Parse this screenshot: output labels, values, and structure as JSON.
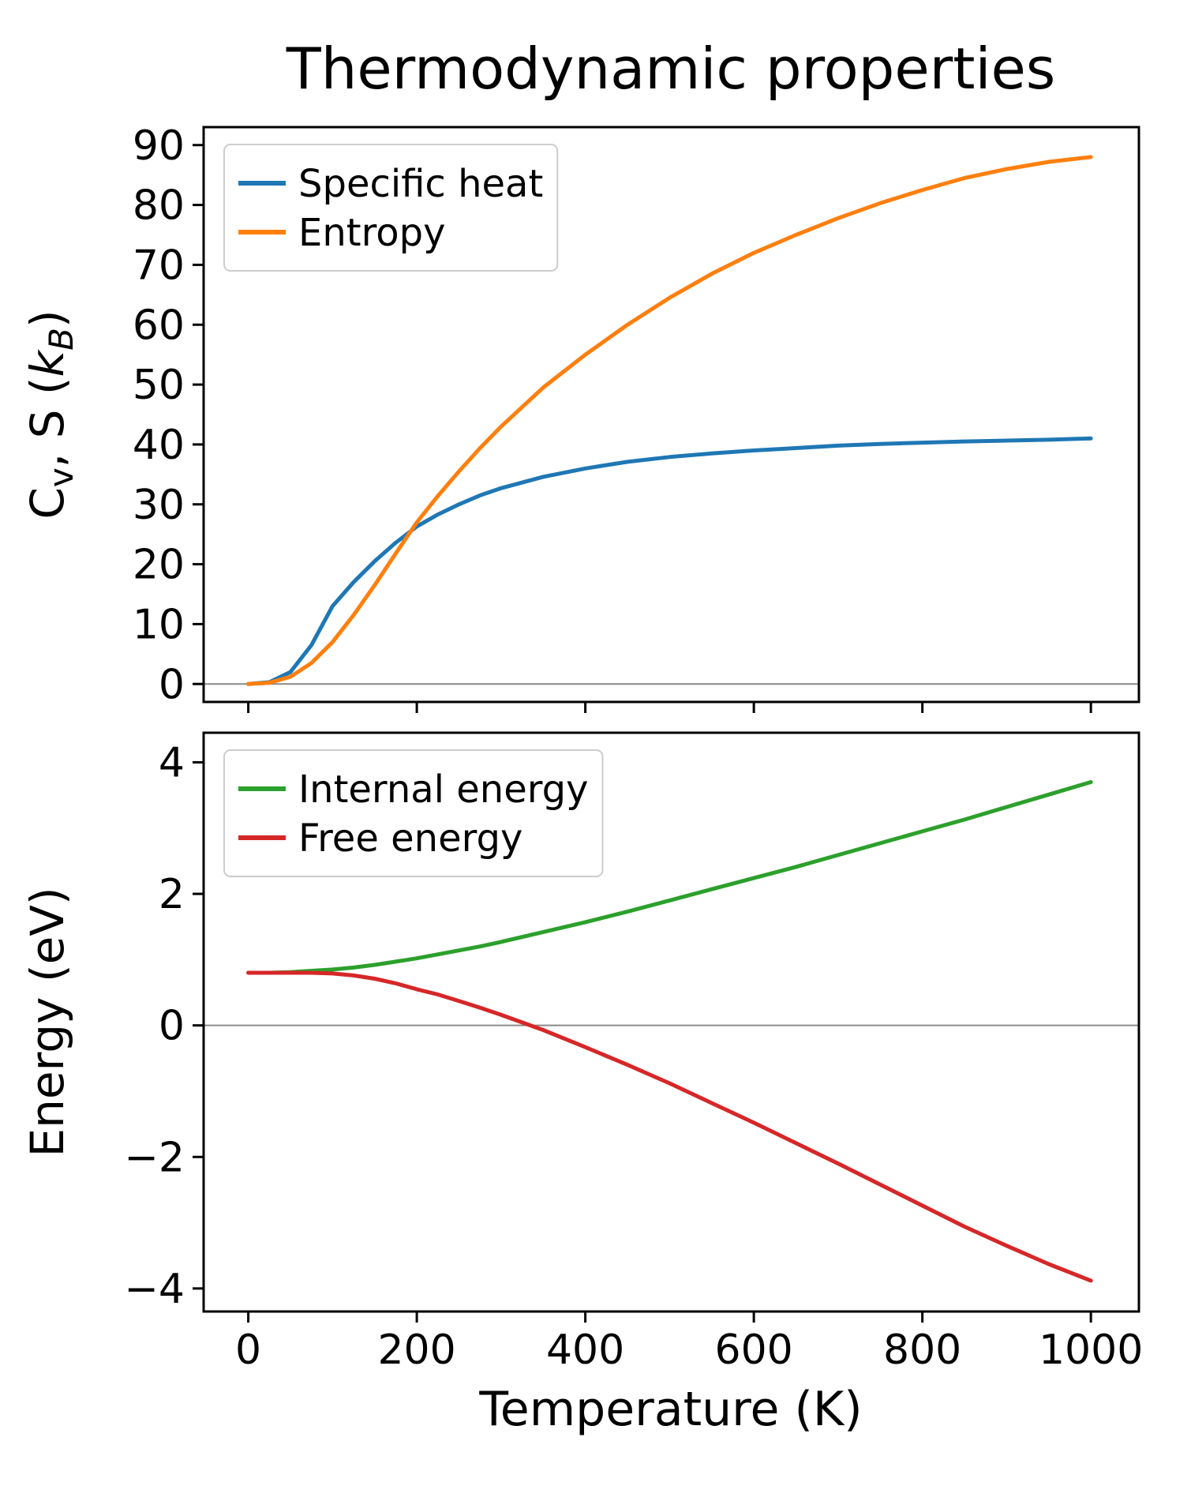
{
  "chart_data": [
    {
      "type": "line",
      "title": "Thermodynamic properties",
      "xlabel": "",
      "ylabel": "Cv, S (kB)",
      "ylabel_segments": [
        {
          "t": "C"
        },
        {
          "t": "v",
          "sub": true
        },
        {
          "t": ", S ("
        },
        {
          "t": "k",
          "italic": true
        },
        {
          "t": "B",
          "sub": true,
          "italic": true
        },
        {
          "t": ")"
        }
      ],
      "xlim": [
        -53,
        1057
      ],
      "ylim": [
        -3,
        93
      ],
      "xticks": [
        0,
        200,
        400,
        600,
        800,
        1000
      ],
      "yticks": [
        0,
        10,
        20,
        30,
        40,
        50,
        60,
        70,
        80,
        90
      ],
      "show_xticklabels": false,
      "zero_line": true,
      "zero_line_color": "#8a8a8a",
      "grid": false,
      "legend_position": "upper left",
      "x": [
        0,
        25,
        50,
        75,
        100,
        125,
        150,
        175,
        200,
        225,
        250,
        275,
        300,
        350,
        400,
        450,
        500,
        550,
        600,
        650,
        700,
        750,
        800,
        850,
        900,
        950,
        1000
      ],
      "series": [
        {
          "name": "Specific heat",
          "color": "#1f77b4",
          "values": [
            0,
            0.3,
            2.0,
            6.5,
            13.0,
            17.0,
            20.5,
            23.6,
            26.3,
            28.3,
            30.0,
            31.5,
            32.7,
            34.6,
            36.0,
            37.1,
            37.9,
            38.5,
            39.0,
            39.4,
            39.8,
            40.1,
            40.3,
            40.5,
            40.65,
            40.8,
            41.0
          ]
        },
        {
          "name": "Entropy",
          "color": "#ff7f0e",
          "values": [
            0,
            0.2,
            1.2,
            3.5,
            7.0,
            11.5,
            16.5,
            21.8,
            27.0,
            31.4,
            35.5,
            39.4,
            43.0,
            49.5,
            55.0,
            60.0,
            64.5,
            68.5,
            72.0,
            75.0,
            77.8,
            80.3,
            82.5,
            84.5,
            86.0,
            87.2,
            88.0
          ]
        }
      ]
    },
    {
      "type": "line",
      "title": "",
      "xlabel": "Temperature (K)",
      "ylabel": "Energy (eV)",
      "ylabel_segments": [
        {
          "t": "Energy (eV)"
        }
      ],
      "xlim": [
        -53,
        1057
      ],
      "ylim": [
        -4.35,
        4.45
      ],
      "xticks": [
        0,
        200,
        400,
        600,
        800,
        1000
      ],
      "yticks": [
        -4,
        -2,
        0,
        2,
        4
      ],
      "show_xticklabels": true,
      "zero_line": true,
      "zero_line_color": "#8a8a8a",
      "grid": false,
      "legend_position": "upper left",
      "x": [
        0,
        25,
        50,
        75,
        100,
        125,
        150,
        175,
        200,
        225,
        250,
        275,
        300,
        350,
        400,
        450,
        500,
        550,
        600,
        650,
        700,
        750,
        800,
        850,
        900,
        950,
        1000
      ],
      "series": [
        {
          "name": "Internal energy",
          "color": "#2ca02c",
          "values": [
            0.8,
            0.8,
            0.81,
            0.83,
            0.85,
            0.88,
            0.92,
            0.97,
            1.02,
            1.08,
            1.14,
            1.2,
            1.27,
            1.42,
            1.57,
            1.73,
            1.9,
            2.07,
            2.24,
            2.41,
            2.59,
            2.77,
            2.95,
            3.13,
            3.32,
            3.51,
            3.7
          ]
        },
        {
          "name": "Free energy",
          "color": "#d62728",
          "values": [
            0.8,
            0.8,
            0.8,
            0.8,
            0.79,
            0.76,
            0.71,
            0.64,
            0.55,
            0.47,
            0.37,
            0.27,
            0.16,
            -0.07,
            -0.33,
            -0.6,
            -0.88,
            -1.18,
            -1.48,
            -1.79,
            -2.1,
            -2.42,
            -2.74,
            -3.06,
            -3.35,
            -3.63,
            -3.88
          ]
        }
      ]
    }
  ]
}
